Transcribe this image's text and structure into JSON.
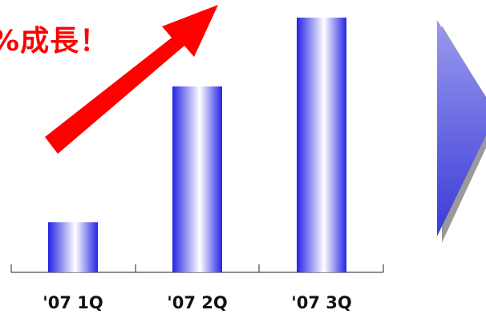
{
  "chart_data": {
    "type": "bar",
    "categories": [
      "'07 1Q",
      "'07 2Q",
      "'07 3Q"
    ],
    "values": [
      27,
      100,
      137
    ],
    "ylim": [
      0,
      140
    ],
    "grid": false,
    "annotation": "%成長！"
  },
  "colors": {
    "bar_edge": "#2020e0",
    "bar_center": "#ffffff",
    "arrow": "#ff0000",
    "side_arrow": "#6f6fe6",
    "side_arrow_shadow": "#9a9a9a",
    "axis": "#222222"
  }
}
